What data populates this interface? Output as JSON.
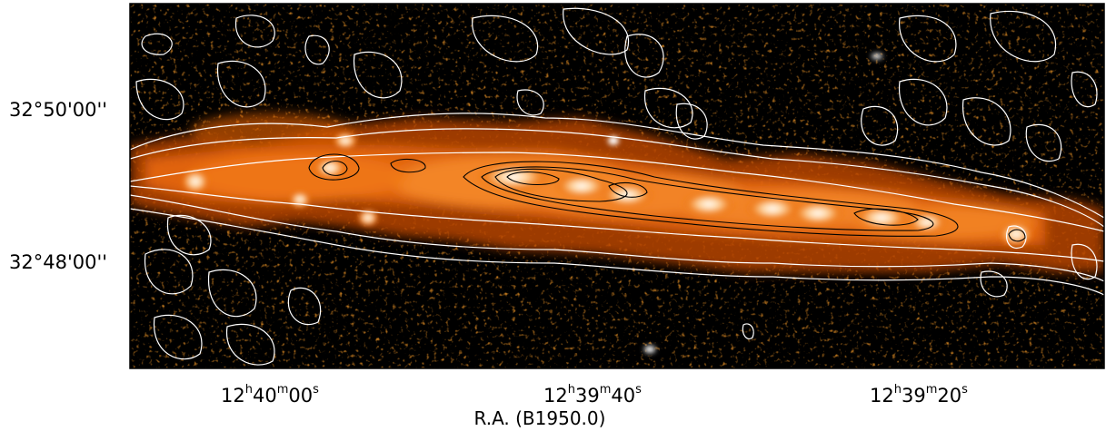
{
  "figure": {
    "x_axis": {
      "label": "R.A. (B1950.0)",
      "ticks": [
        {
          "h": "12",
          "m": "40",
          "s": "00"
        },
        {
          "h": "12",
          "m": "39",
          "s": "40"
        },
        {
          "h": "12",
          "m": "39",
          "s": "20"
        }
      ]
    },
    "y_axis": {
      "ticks": [
        "32°50'00''",
        "32°48'00''"
      ]
    },
    "colors": {
      "background": "#000000",
      "colormap_low": "#5a1a00",
      "colormap_mid": "#e8670a",
      "colormap_high": "#ffffff",
      "contour_outer": "#ffffff",
      "contour_inner": "#000000"
    }
  }
}
